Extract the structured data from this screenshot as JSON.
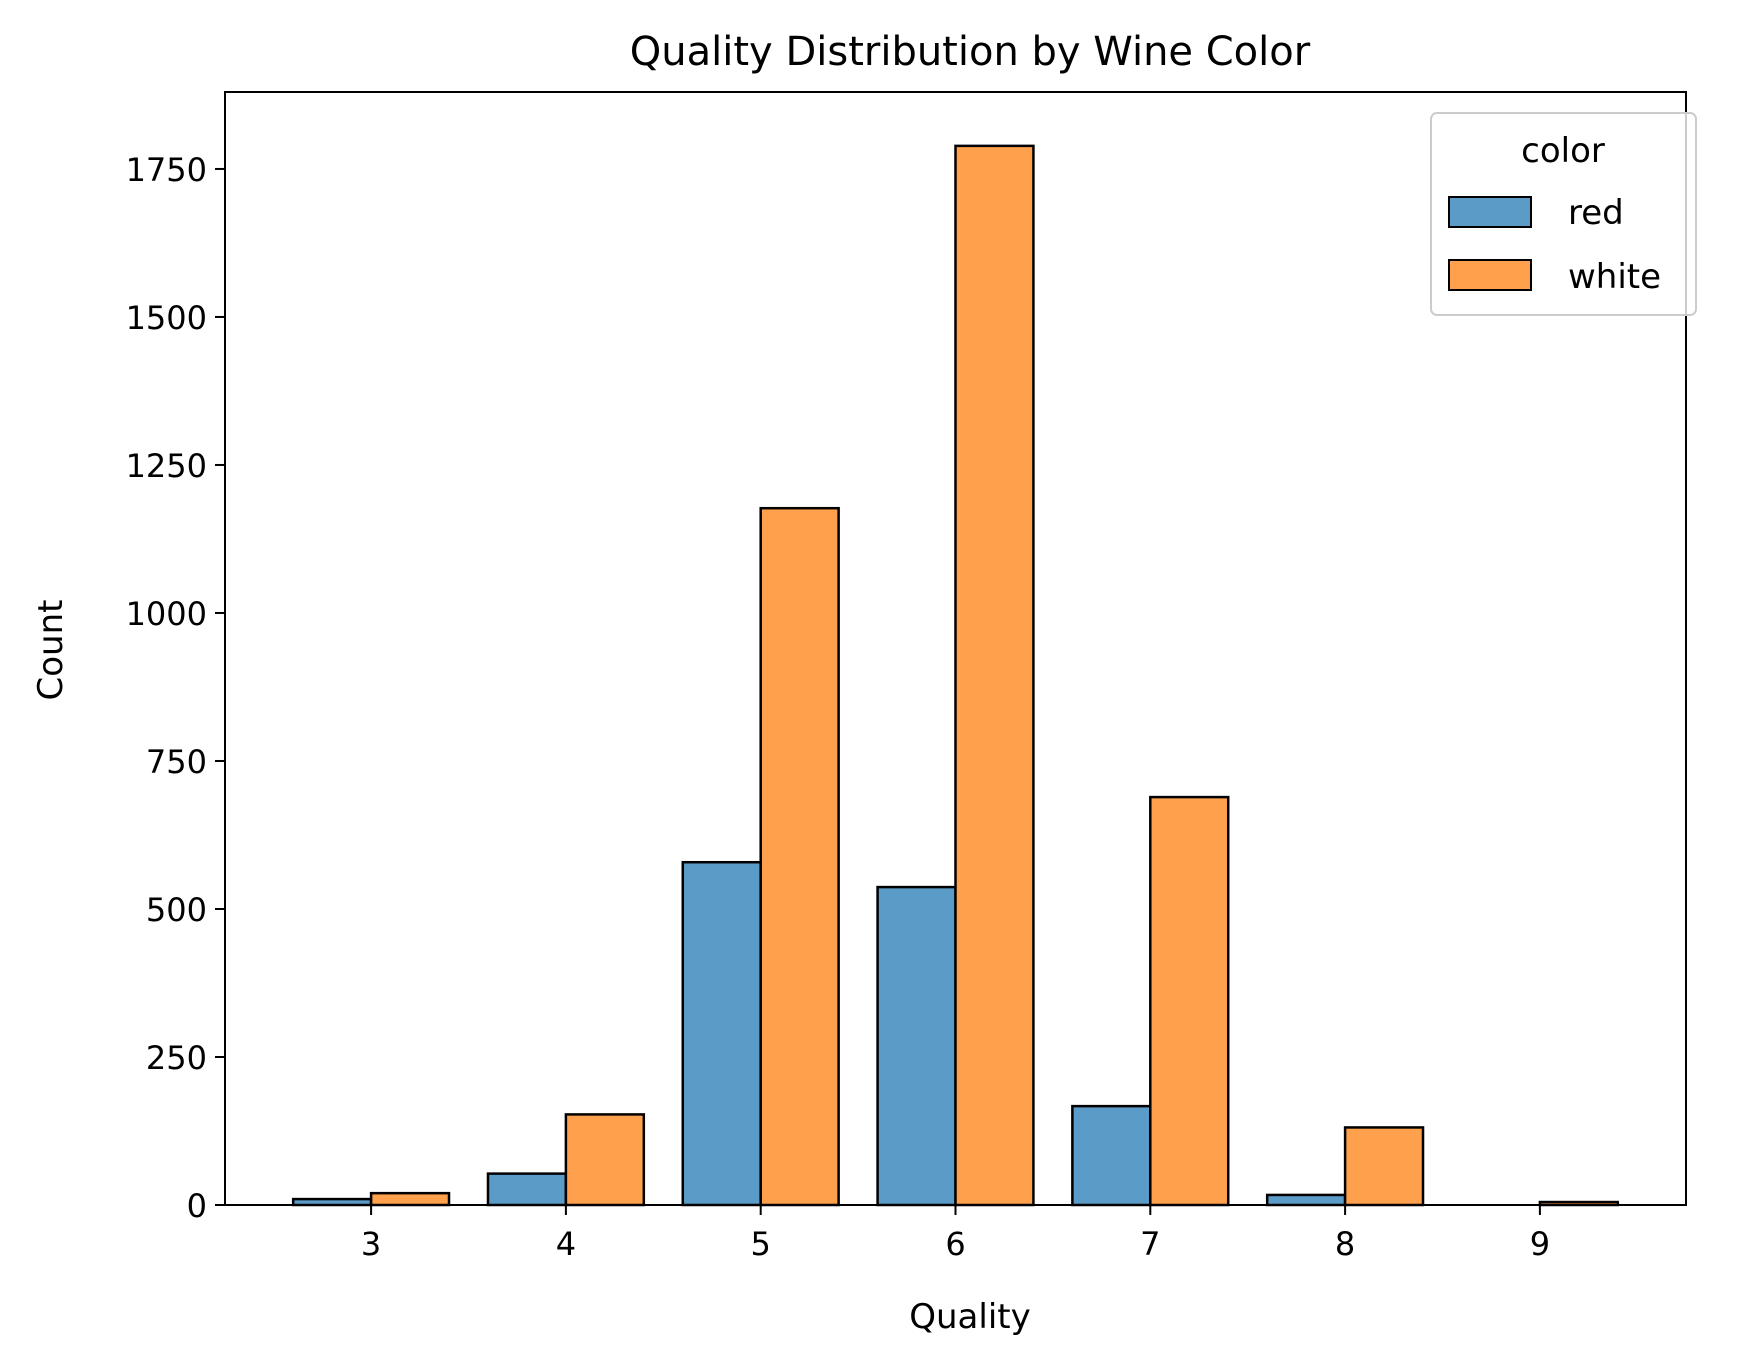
{
  "chart_data": {
    "type": "bar",
    "title": "Quality Distribution by Wine Color",
    "xlabel": "Quality",
    "ylabel": "Count",
    "categories": [
      "3",
      "4",
      "5",
      "6",
      "7",
      "8",
      "9"
    ],
    "x": [
      3,
      4,
      5,
      6,
      7,
      8,
      9
    ],
    "series": [
      {
        "name": "red",
        "values": [
          10,
          53,
          579,
          537,
          167,
          17,
          0
        ],
        "color": "#5a9bc8"
      },
      {
        "name": "white",
        "values": [
          20,
          153,
          1177,
          1789,
          689,
          131,
          5
        ],
        "color": "#ffa04c"
      }
    ],
    "ylim": [
      0,
      1880
    ],
    "xlim": [
      2.25,
      9.75
    ],
    "yticks": [
      0,
      250,
      500,
      750,
      1000,
      1250,
      1500,
      1750
    ],
    "ytick_labels": [
      "0",
      "250",
      "500",
      "750",
      "1000",
      "1250",
      "1500",
      "1750"
    ],
    "legend": {
      "title": "color",
      "placement": "top-right",
      "entries": [
        "red",
        "white"
      ]
    },
    "grid": false,
    "edge_color": "#000000"
  }
}
